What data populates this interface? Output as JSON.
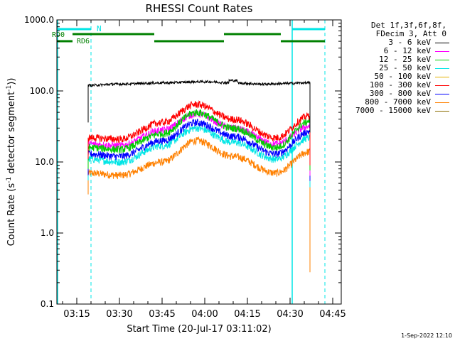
{
  "chart_data": {
    "type": "line",
    "title": "RHESSI Count Rates",
    "xlabel": "Start Time (20-Jul-17 03:11:02)",
    "ylabel": "Count Rate (s-1 detector segment-1)",
    "yscale": "log",
    "ylim": [
      0.1,
      1000
    ],
    "xlim_minutes": [
      "03:08",
      "04:48"
    ],
    "x_ticks": [
      "03:15",
      "03:30",
      "03:45",
      "04:00",
      "04:15",
      "04:30",
      "04:45"
    ],
    "y_ticks": [
      "0.1",
      "1.0",
      "10.0",
      "100.0",
      "1000.0"
    ],
    "legend_header": [
      "Det 1f,3f,6f,8f,",
      "FDecim 3, Att 0"
    ],
    "series": [
      {
        "name": "3 - 6 keV",
        "color": "#000000",
        "values": [
          {
            "x": "03:19",
            "y": 120
          },
          {
            "x": "03:30",
            "y": 125
          },
          {
            "x": "03:45",
            "y": 130
          },
          {
            "x": "04:00",
            "y": 135
          },
          {
            "x": "04:10",
            "y": 130
          },
          {
            "x": "04:20",
            "y": 125
          },
          {
            "x": "04:37",
            "y": 130
          }
        ]
      },
      {
        "name": "6 - 12 keV",
        "color": "#ff00ff",
        "values": [
          {
            "x": "03:19",
            "y": 18
          },
          {
            "x": "03:30",
            "y": 17
          },
          {
            "x": "03:45",
            "y": 28
          },
          {
            "x": "03:57",
            "y": 48
          },
          {
            "x": "04:10",
            "y": 30
          },
          {
            "x": "04:25",
            "y": 18
          },
          {
            "x": "04:37",
            "y": 32
          }
        ]
      },
      {
        "name": "12 - 25 keV",
        "color": "#00cc00",
        "values": [
          {
            "x": "03:19",
            "y": 16
          },
          {
            "x": "03:30",
            "y": 15
          },
          {
            "x": "03:45",
            "y": 25
          },
          {
            "x": "03:57",
            "y": 50
          },
          {
            "x": "04:10",
            "y": 30
          },
          {
            "x": "04:25",
            "y": 16
          },
          {
            "x": "04:37",
            "y": 38
          }
        ]
      },
      {
        "name": "25 - 50 keV",
        "color": "#00e5e5",
        "values": [
          {
            "x": "03:19",
            "y": 11
          },
          {
            "x": "03:30",
            "y": 10
          },
          {
            "x": "03:45",
            "y": 17
          },
          {
            "x": "03:57",
            "y": 30
          },
          {
            "x": "04:10",
            "y": 19
          },
          {
            "x": "04:25",
            "y": 11
          },
          {
            "x": "04:37",
            "y": 22
          }
        ]
      },
      {
        "name": "50 - 100 keV",
        "color": "#e5b000",
        "values": []
      },
      {
        "name": "100 - 300 keV",
        "color": "#ff0000",
        "values": [
          {
            "x": "03:19",
            "y": 22
          },
          {
            "x": "03:30",
            "y": 21
          },
          {
            "x": "03:45",
            "y": 36
          },
          {
            "x": "03:57",
            "y": 65
          },
          {
            "x": "04:10",
            "y": 40
          },
          {
            "x": "04:25",
            "y": 22
          },
          {
            "x": "04:37",
            "y": 45
          }
        ]
      },
      {
        "name": "300 - 800 keV",
        "color": "#0000ff",
        "values": [
          {
            "x": "03:19",
            "y": 13
          },
          {
            "x": "03:30",
            "y": 12
          },
          {
            "x": "03:45",
            "y": 20
          },
          {
            "x": "03:57",
            "y": 36
          },
          {
            "x": "04:10",
            "y": 23
          },
          {
            "x": "04:25",
            "y": 13
          },
          {
            "x": "04:37",
            "y": 27
          }
        ]
      },
      {
        "name": "800 - 7000 keV",
        "color": "#ff8000",
        "values": [
          {
            "x": "03:19",
            "y": 7
          },
          {
            "x": "03:30",
            "y": 6.5
          },
          {
            "x": "03:45",
            "y": 10
          },
          {
            "x": "03:57",
            "y": 20
          },
          {
            "x": "04:10",
            "y": 12
          },
          {
            "x": "04:25",
            "y": 7
          },
          {
            "x": "04:37",
            "y": 14
          }
        ]
      },
      {
        "name": "7000 - 15000 keV",
        "color": "#8b6b00",
        "values": []
      }
    ],
    "annotations": [
      {
        "label": "N",
        "color": "#00e5e5"
      },
      {
        "label": "RD0",
        "color": "#008000"
      },
      {
        "label": "RD6",
        "color": "#008000"
      }
    ]
  },
  "footer": "1-Sep-2022 12:10"
}
